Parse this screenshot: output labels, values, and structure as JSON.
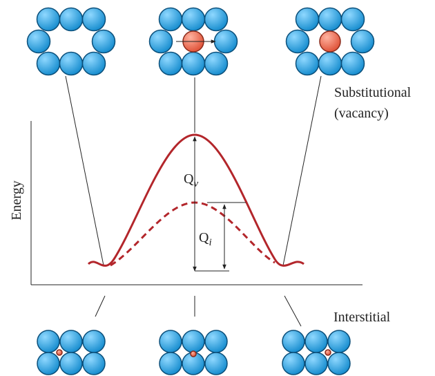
{
  "labels": {
    "substitutional": "Substitutional",
    "vacancy": "(vacancy)",
    "energy_axis": "Energy",
    "qv": {
      "main": "Q",
      "sub": "v"
    },
    "qi": {
      "main": "Q",
      "sub": "i"
    },
    "interstitial": "Interstitial"
  }
}
